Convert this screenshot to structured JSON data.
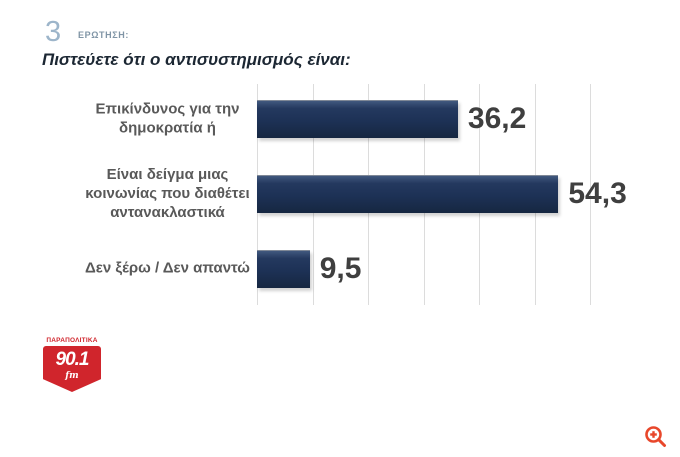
{
  "header": {
    "question_number": "3",
    "question_label": "ΕΡΩΤΗΣΗ:",
    "title": "Πιστεύετε ότι ο αντισυστημισμός είναι:"
  },
  "chart_data": {
    "type": "bar",
    "orientation": "horizontal",
    "title": "Πιστεύετε ότι ο αντισυστημισμός είναι:",
    "categories": [
      "Επικίνδυνος για την δημοκρατία ή",
      "Είναι δείγμα μιας κοινωνίας που διαθέτει αντανακλαστικά",
      "Δεν ξέρω / Δεν απαντώ"
    ],
    "values": [
      36.2,
      54.3,
      9.5
    ],
    "value_labels": [
      "36,2",
      "54,3",
      "9,5"
    ],
    "xlim": [
      0,
      60
    ],
    "gridline_step": 10,
    "grid": true,
    "legend": false,
    "bar_color": "#1d3155",
    "grid_color": "#dcdcdc",
    "category_label_color": "#595959",
    "value_label_color": "#3f3f3f"
  },
  "branding": {
    "station_name": "ΠΑΡΑΠΟΛΙΤΙΚΑ",
    "frequency": "90.1",
    "band": "fm",
    "logo_red": "#d0252c"
  },
  "icons": {
    "zoom_in_icon": "magnifier-plus",
    "zoom_icon_color": "#e8472b"
  }
}
